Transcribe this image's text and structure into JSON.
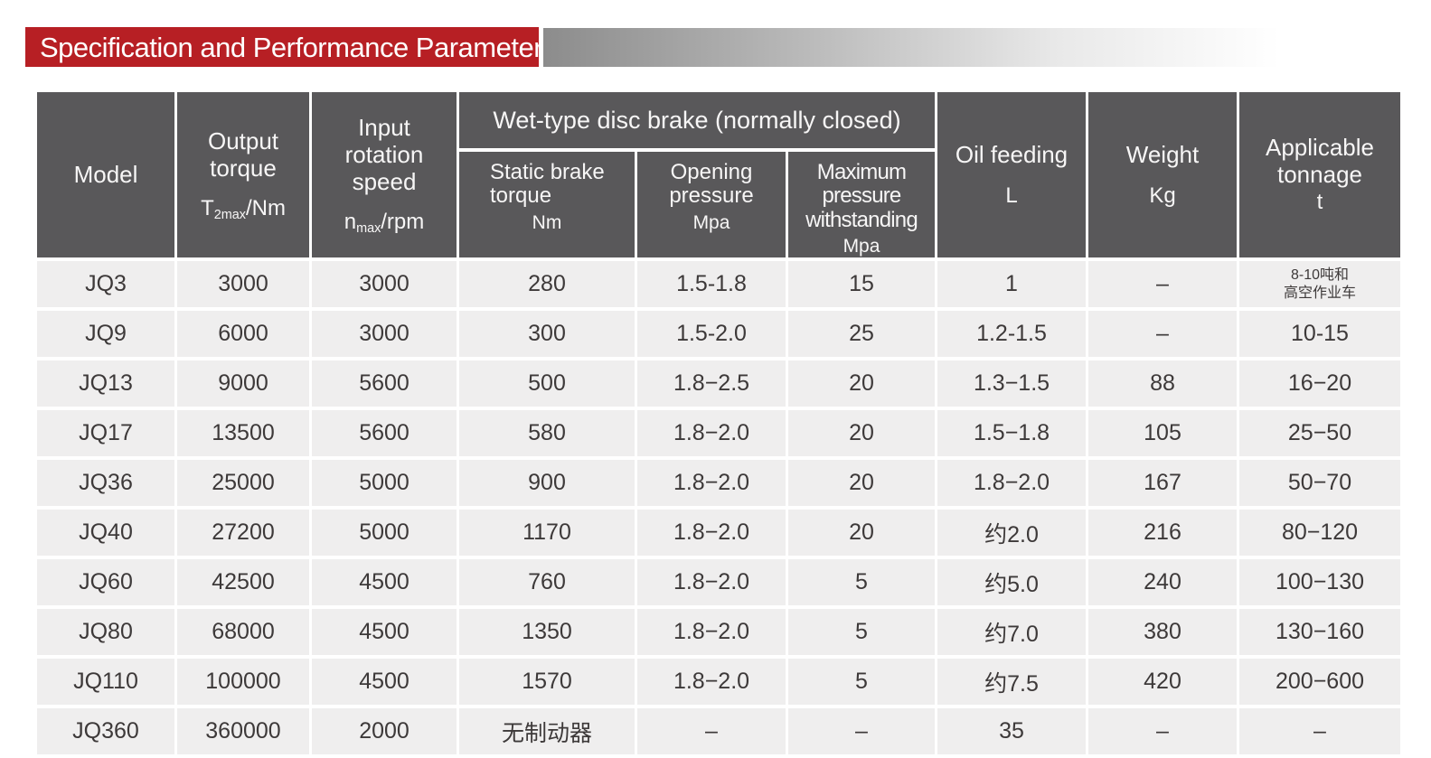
{
  "title": {
    "text": "Specification and Performance Parameters",
    "accent_color": "#b71f24",
    "text_color": "#ffffff"
  },
  "colors": {
    "header_bg": "#59585a",
    "row_bg": "#efeeee",
    "body_text": "#3d3939",
    "fade_bar_start": "#8c8c8c"
  },
  "table": {
    "header": {
      "model": "Model",
      "output_torque_title": "Output torque",
      "output_torque_unit": {
        "base": "T",
        "sub": "2max",
        "rest": "/Nm"
      },
      "input_speed_title": "Input rotation speed",
      "input_speed_unit": {
        "base": "n",
        "sub": "max",
        "rest": "/rpm"
      },
      "wet_brake_group": "Wet-type disc brake (normally closed)",
      "static_brake_title": "Static brake torque",
      "static_brake_unit": "Nm",
      "opening_pressure_title": "Opening pressure",
      "opening_pressure_unit": "Mpa",
      "max_pressure_title": "Maximum pressure withstanding",
      "max_pressure_unit": "Mpa",
      "oil_feeding_title": "Oil feeding",
      "oil_feeding_unit": "L",
      "weight_title": "Weight",
      "weight_unit": "Kg",
      "tonnage_title": "Applicable tonnage",
      "tonnage_unit": "t"
    },
    "rows": [
      [
        "JQ3",
        "3000",
        "3000",
        "280",
        "1.5-1.8",
        "15",
        "1",
        "–",
        "8-10吨和\n高空作业车"
      ],
      [
        "JQ9",
        "6000",
        "3000",
        "300",
        "1.5-2.0",
        "25",
        "1.2-1.5",
        "–",
        "10-15"
      ],
      [
        "JQ13",
        "9000",
        "5600",
        "500",
        "1.8−2.5",
        "20",
        "1.3−1.5",
        "88",
        "16−20"
      ],
      [
        "JQ17",
        "13500",
        "5600",
        "580",
        "1.8−2.0",
        "20",
        "1.5−1.8",
        "105",
        "25−50"
      ],
      [
        "JQ36",
        "25000",
        "5000",
        "900",
        "1.8−2.0",
        "20",
        "1.8−2.0",
        "167",
        "50−70"
      ],
      [
        "JQ40",
        "27200",
        "5000",
        "1170",
        "1.8−2.0",
        "20",
        "约2.0",
        "216",
        "80−120"
      ],
      [
        "JQ60",
        "42500",
        "4500",
        "760",
        "1.8−2.0",
        "5",
        "约5.0",
        "240",
        "100−130"
      ],
      [
        "JQ80",
        "68000",
        "4500",
        "1350",
        "1.8−2.0",
        "5",
        "约7.0",
        "380",
        "130−160"
      ],
      [
        "JQ110",
        "100000",
        "4500",
        "1570",
        "1.8−2.0",
        "5",
        "约7.5",
        "420",
        "200−600"
      ],
      [
        "JQ360",
        "360000",
        "2000",
        "无制动器",
        "–",
        "–",
        "35",
        "–",
        "–"
      ]
    ]
  }
}
